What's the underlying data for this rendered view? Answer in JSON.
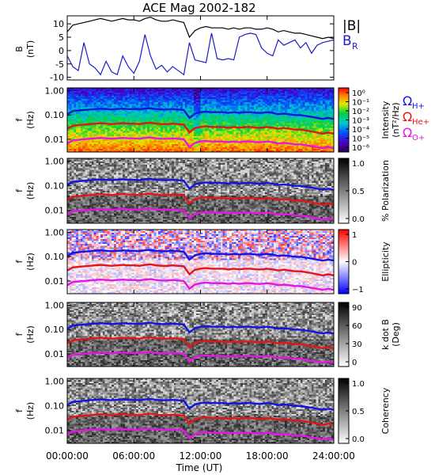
{
  "chart_data": {
    "title": "ACE Mag 2002-182",
    "type": "line",
    "x_axis": {
      "label": "Time (UT)",
      "ticks": [
        "00:00:00",
        "06:00:00",
        "12:00:00",
        "18:00:00",
        "24:00:00"
      ],
      "range_hours": [
        0,
        24
      ]
    },
    "panels": [
      {
        "type": "line",
        "ylabel": "B",
        "yunit": "(nT)",
        "ylim": [
          -11,
          13
        ],
        "yticks": [
          "10",
          "5",
          "0",
          "-5",
          "-10"
        ],
        "ytick_values": [
          10,
          5,
          0,
          -5,
          -10
        ],
        "series": [
          {
            "name": "|B|",
            "color": "#000000",
            "x": [
              0.0,
              0.5,
              1.0,
              1.5,
              2.0,
              2.5,
              3.0,
              3.5,
              4.0,
              4.5,
              5.0,
              5.5,
              6.0,
              6.5,
              7.0,
              7.5,
              8.0,
              8.5,
              9.0,
              9.5,
              10.0,
              10.5,
              11.0,
              11.5,
              12.0,
              12.5,
              13.0,
              13.5,
              14.0,
              14.5,
              15.0,
              15.5,
              16.0,
              16.5,
              17.0,
              17.5,
              18.0,
              18.5,
              19.0,
              19.5,
              20.0,
              20.5,
              21.0,
              21.5,
              22.0,
              22.5,
              23.0,
              23.5,
              24.0
            ],
            "y": [
              7.0,
              9.5,
              10.0,
              10.5,
              11.0,
              11.5,
              12.0,
              11.5,
              11.0,
              11.5,
              12.0,
              11.5,
              11.5,
              11.0,
              12.0,
              12.5,
              11.5,
              11.0,
              11.0,
              11.5,
              11.0,
              10.5,
              5.0,
              7.5,
              8.5,
              9.0,
              8.5,
              8.5,
              8.5,
              8.0,
              8.5,
              8.0,
              8.5,
              8.5,
              8.0,
              8.0,
              8.5,
              8.0,
              7.0,
              7.5,
              7.0,
              6.5,
              6.5,
              6.0,
              5.5,
              5.0,
              4.5,
              5.0,
              4.5
            ]
          },
          {
            "name": "B_R",
            "color": "#1c1cc8",
            "x": [
              0.0,
              0.5,
              1.0,
              1.5,
              2.0,
              2.5,
              3.0,
              3.5,
              4.0,
              4.5,
              5.0,
              5.5,
              6.0,
              6.5,
              7.0,
              7.5,
              8.0,
              8.5,
              9.0,
              9.5,
              10.0,
              10.5,
              11.0,
              11.5,
              12.0,
              12.5,
              13.0,
              13.5,
              14.0,
              14.5,
              15.0,
              15.5,
              16.0,
              16.5,
              17.0,
              17.5,
              18.0,
              18.5,
              19.0,
              19.5,
              20.0,
              20.5,
              21.0,
              21.5,
              22.0,
              22.5,
              23.0,
              23.5,
              24.0
            ],
            "y": [
              -2.0,
              -6.0,
              -7.5,
              3.0,
              -5.0,
              -6.5,
              -9.0,
              -4.0,
              -8.0,
              -9.0,
              -2.0,
              -6.0,
              -8.5,
              -4.0,
              6.0,
              -2.0,
              -7.0,
              -5.5,
              -8.0,
              -6.0,
              -7.5,
              -9.0,
              3.0,
              -3.5,
              -4.0,
              -4.5,
              6.5,
              -3.0,
              -3.5,
              -3.0,
              -3.5,
              5.0,
              6.0,
              6.5,
              6.0,
              1.0,
              -1.0,
              -2.0,
              4.0,
              2.0,
              3.0,
              4.0,
              1.0,
              3.0,
              -1.0,
              2.0,
              3.0,
              3.5,
              4.0
            ]
          }
        ],
        "legend": [
          "|B|",
          "B_R"
        ]
      },
      {
        "type": "heatmap",
        "ylabel": "f",
        "yunit": "(Hz)",
        "yticks": [
          "1.00",
          "0.10",
          "0.01"
        ],
        "ytick_values": [
          1.0,
          0.1,
          0.01
        ],
        "ylim": [
          0.003,
          1.3
        ],
        "yscale": "log",
        "colorbar": {
          "label": "Intensity",
          "unit": "(nT²/Hz)",
          "ticks": [
            "10⁰",
            "10⁻¹",
            "10⁻²",
            "10⁻³",
            "10⁻⁴",
            "10⁻⁵",
            "10⁻⁶"
          ],
          "tick_values": [
            1,
            0.1,
            0.01,
            0.001,
            0.0001,
            1e-05,
            1e-06
          ],
          "colormap": "rainbow"
        },
        "legend": [
          "ΩH+",
          "ΩHe+",
          "ΩO+"
        ]
      },
      {
        "type": "heatmap",
        "ylabel": "f",
        "yunit": "(Hz)",
        "yticks": [
          "1.00",
          "0.10",
          "0.01"
        ],
        "ytick_values": [
          1.0,
          0.1,
          0.01
        ],
        "ylim": [
          0.003,
          1.3
        ],
        "yscale": "log",
        "colorbar": {
          "label": "% Polarization",
          "unit": "",
          "ticks": [
            "1.0",
            "0.5",
            "0.0"
          ],
          "tick_values": [
            1.0,
            0.5,
            0.0
          ],
          "colormap": "grayscale"
        }
      },
      {
        "type": "heatmap",
        "ylabel": "f",
        "yunit": "(Hz)",
        "yticks": [
          "1.00",
          "0.10",
          "0.01"
        ],
        "ytick_values": [
          1.0,
          0.1,
          0.01
        ],
        "ylim": [
          0.003,
          1.3
        ],
        "yscale": "log",
        "colorbar": {
          "label": "Ellipticity",
          "unit": "",
          "ticks": [
            "1",
            "0",
            "−1"
          ],
          "tick_values": [
            1,
            0,
            -1
          ],
          "colormap": "blue-white-red"
        }
      },
      {
        "type": "heatmap",
        "ylabel": "f",
        "yunit": "(Hz)",
        "yticks": [
          "1.00",
          "0.10",
          "0.01"
        ],
        "ytick_values": [
          1.0,
          0.1,
          0.01
        ],
        "ylim": [
          0.003,
          1.3
        ],
        "yscale": "log",
        "colorbar": {
          "label": "k dot B",
          "unit": "(Deg)",
          "ticks": [
            "90",
            "60",
            "30",
            "0"
          ],
          "tick_values": [
            90,
            60,
            30,
            0
          ],
          "colormap": "grayscale"
        }
      },
      {
        "type": "heatmap",
        "ylabel": "f",
        "yunit": "(Hz)",
        "yticks": [
          "1.00",
          "0.10",
          "0.01"
        ],
        "ytick_values": [
          1.0,
          0.1,
          0.01
        ],
        "ylim": [
          0.003,
          1.3
        ],
        "yscale": "log",
        "colorbar": {
          "label": "Coherency",
          "unit": "",
          "ticks": [
            "1.0",
            "0.5",
            "0.0"
          ],
          "tick_values": [
            1.0,
            0.5,
            0.0
          ],
          "colormap": "grayscale"
        }
      }
    ],
    "gyrofrequency_lines": {
      "x": [
        0.0,
        0.5,
        1.0,
        1.5,
        2.0,
        2.5,
        3.0,
        3.5,
        4.0,
        4.5,
        5.0,
        5.5,
        6.0,
        6.5,
        7.0,
        7.5,
        8.0,
        8.5,
        9.0,
        9.5,
        10.0,
        10.5,
        11.0,
        11.5,
        12.0,
        12.5,
        13.0,
        13.5,
        14.0,
        14.5,
        15.0,
        15.5,
        16.0,
        16.5,
        17.0,
        17.5,
        18.0,
        18.5,
        19.0,
        19.5,
        20.0,
        20.5,
        21.0,
        21.5,
        22.0,
        22.5,
        23.0,
        23.5,
        24.0
      ],
      "series": [
        {
          "name": "ΩH+",
          "color": "#1414e0",
          "y": [
            0.107,
            0.145,
            0.152,
            0.16,
            0.168,
            0.175,
            0.183,
            0.175,
            0.168,
            0.175,
            0.183,
            0.175,
            0.175,
            0.168,
            0.183,
            0.19,
            0.175,
            0.168,
            0.168,
            0.175,
            0.168,
            0.16,
            0.076,
            0.114,
            0.13,
            0.137,
            0.13,
            0.13,
            0.13,
            0.122,
            0.13,
            0.122,
            0.13,
            0.13,
            0.122,
            0.122,
            0.13,
            0.122,
            0.107,
            0.114,
            0.107,
            0.099,
            0.099,
            0.091,
            0.084,
            0.076,
            0.069,
            0.076,
            0.069
          ]
        },
        {
          "name": "ΩHe+",
          "color": "#e61414",
          "y": [
            0.027,
            0.036,
            0.038,
            0.04,
            0.042,
            0.044,
            0.046,
            0.044,
            0.042,
            0.044,
            0.046,
            0.044,
            0.044,
            0.042,
            0.046,
            0.048,
            0.044,
            0.042,
            0.042,
            0.044,
            0.042,
            0.04,
            0.019,
            0.029,
            0.032,
            0.034,
            0.032,
            0.032,
            0.032,
            0.03,
            0.032,
            0.03,
            0.032,
            0.032,
            0.03,
            0.03,
            0.032,
            0.03,
            0.027,
            0.029,
            0.027,
            0.025,
            0.025,
            0.023,
            0.021,
            0.019,
            0.017,
            0.019,
            0.017
          ]
        },
        {
          "name": "ΩO+",
          "color": "#e614e6",
          "y": [
            0.0067,
            0.0091,
            0.0095,
            0.01,
            0.0105,
            0.011,
            0.0114,
            0.011,
            0.0105,
            0.011,
            0.0114,
            0.011,
            0.011,
            0.0105,
            0.0114,
            0.0119,
            0.011,
            0.0105,
            0.0105,
            0.011,
            0.0105,
            0.01,
            0.0048,
            0.0071,
            0.0081,
            0.0086,
            0.0081,
            0.0081,
            0.0081,
            0.0076,
            0.0081,
            0.0076,
            0.0081,
            0.0081,
            0.0076,
            0.0076,
            0.0081,
            0.0076,
            0.0067,
            0.0071,
            0.0067,
            0.0062,
            0.0062,
            0.0057,
            0.0052,
            0.0048,
            0.0043,
            0.0048,
            0.0043
          ]
        }
      ]
    }
  },
  "colors": {
    "b_total": "#000000",
    "b_r": "#1c1cc8",
    "omega_h": "#1414e0",
    "omega_he": "#e61414",
    "omega_o": "#e614e6"
  }
}
